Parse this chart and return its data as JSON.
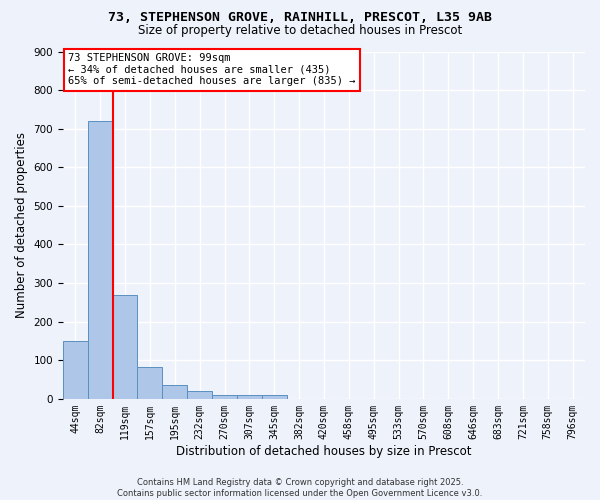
{
  "title_line1": "73, STEPHENSON GROVE, RAINHILL, PRESCOT, L35 9AB",
  "title_line2": "Size of property relative to detached houses in Prescot",
  "xlabel": "Distribution of detached houses by size in Prescot",
  "ylabel": "Number of detached properties",
  "categories": [
    "44sqm",
    "82sqm",
    "119sqm",
    "157sqm",
    "195sqm",
    "232sqm",
    "270sqm",
    "307sqm",
    "345sqm",
    "382sqm",
    "420sqm",
    "458sqm",
    "495sqm",
    "533sqm",
    "570sqm",
    "608sqm",
    "646sqm",
    "683sqm",
    "721sqm",
    "758sqm",
    "796sqm"
  ],
  "values": [
    150,
    720,
    270,
    82,
    35,
    20,
    10,
    10,
    10,
    0,
    0,
    0,
    0,
    0,
    0,
    0,
    0,
    0,
    0,
    0,
    0
  ],
  "bar_color": "#aec6e8",
  "bar_edge_color": "#5a8fc0",
  "red_line_x": 1.5,
  "ylim": [
    0,
    900
  ],
  "yticks": [
    0,
    100,
    200,
    300,
    400,
    500,
    600,
    700,
    800,
    900
  ],
  "annotation_text_line1": "73 STEPHENSON GROVE: 99sqm",
  "annotation_text_line2": "← 34% of detached houses are smaller (435)",
  "annotation_text_line3": "65% of semi-detached houses are larger (835) →",
  "footer_line1": "Contains HM Land Registry data © Crown copyright and database right 2025.",
  "footer_line2": "Contains public sector information licensed under the Open Government Licence v3.0.",
  "background_color": "#eef2fb",
  "grid_color": "#ffffff",
  "annotation_fontsize": 7.5,
  "tick_fontsize": 7.0,
  "axis_label_fontsize": 8.5,
  "title_fontsize1": 9.5,
  "title_fontsize2": 8.5,
  "footer_fontsize": 6.0
}
